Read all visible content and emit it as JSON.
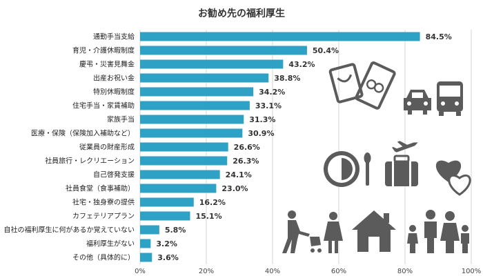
{
  "chart_data": {
    "type": "bar",
    "orientation": "horizontal",
    "title": "お勧め先の福利厚生",
    "categories": [
      "通勤手当支給",
      "育児・介護休暇制度",
      "慶弔・災害見舞金",
      "出産お祝い金",
      "特別休暇制度",
      "住宅手当・家賃補助",
      "家族手当",
      "医療・保険（保険加入補助など）",
      "従業員の財産形成",
      "社員旅行・レクリエーション",
      "自己啓発支援",
      "社員食堂（食事補助）",
      "社宅・独身寮の提供",
      "カフェテリアプラン",
      "自社の福利厚生に何があるか覚えていない",
      "福利厚生がない",
      "その他（具体的に）"
    ],
    "values": [
      84.5,
      50.4,
      43.2,
      38.8,
      34.2,
      33.1,
      31.3,
      30.9,
      26.6,
      26.3,
      24.1,
      23.0,
      16.2,
      15.1,
      5.8,
      3.2,
      3.6
    ],
    "value_labels": [
      "84.5%",
      "50.4%",
      "43.2%",
      "38.8%",
      "34.2%",
      "33.1%",
      "31.3%",
      "30.9%",
      "26.6%",
      "26.3%",
      "24.1%",
      "23.0%",
      "16.2%",
      "15.1%",
      "5.8%",
      "3.2%",
      "3.6%"
    ],
    "xlim": [
      0,
      100
    ],
    "xticks": [
      0,
      20,
      40,
      60,
      80,
      100
    ],
    "xtick_labels": [
      "0%",
      "20%",
      "40%",
      "60%",
      "80%",
      "100%"
    ],
    "grid": "vertical",
    "bar_color": "#2ea2c5"
  },
  "illustration": {
    "icon_color": "#5b5b5b",
    "icons": [
      "receipt-icon",
      "gift-envelope-icon",
      "car-icon",
      "bus-icon",
      "plate-icon",
      "airplane-icon",
      "suitcase-icon",
      "hearts-icon",
      "family-stroller-icon",
      "house-icon",
      "family-icon"
    ]
  }
}
